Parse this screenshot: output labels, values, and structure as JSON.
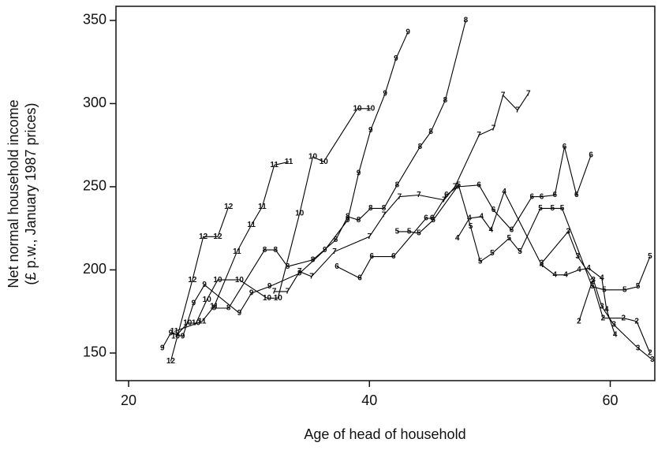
{
  "chart_data": {
    "type": "scatter",
    "x_label": "Age of head of household",
    "y_label": [
      "Net normal household income",
      "(£ p.w., January 1987 prices)"
    ],
    "xlim": [
      18.95,
      63.7
    ],
    "ylim": [
      133.4,
      358.5
    ],
    "xticks": [
      20,
      40,
      60
    ],
    "yticks": [
      150,
      200,
      250,
      300,
      350
    ],
    "color": "#000000",
    "series": [
      {
        "name": "12",
        "x": [
          23.5,
          25.3,
          26.2,
          27.4,
          28.3
        ],
        "values": [
          145,
          194,
          220,
          220,
          238
        ]
      },
      {
        "name": "11",
        "x": [
          23.8,
          26.1,
          27.1,
          29,
          30.2,
          31.1,
          32.1,
          33.3
        ],
        "values": [
          163,
          169,
          178,
          211,
          227,
          238,
          263,
          265
        ]
      },
      {
        "name": "10",
        "x": [
          23.9,
          24.9,
          25.6,
          26.5,
          27.4,
          29.2,
          31.5,
          32.4,
          34.2,
          35.3,
          36.2,
          39,
          40.1
        ],
        "values": [
          160,
          168,
          168,
          182,
          194,
          194,
          183,
          183,
          234,
          268,
          265,
          297,
          297
        ]
      },
      {
        "name": "9",
        "x": [
          22.8,
          23.5,
          24.5,
          25.4,
          26.3,
          29.2,
          30.2,
          31.7,
          34.2,
          36.3,
          38.2,
          39.1,
          40.1,
          41.3,
          42.2,
          43.2
        ],
        "values": [
          153,
          162,
          160,
          180,
          191,
          174,
          186,
          190,
          198,
          212,
          230,
          258,
          284,
          306,
          327,
          343
        ]
      },
      {
        "name": "8",
        "x": [
          27.1,
          28.3,
          31.3,
          32.2,
          33.2,
          35.3,
          37.2,
          38.2,
          39.1,
          40.1,
          41.2,
          42.3,
          44.2,
          45.1,
          46.3,
          48
        ],
        "values": [
          177,
          177,
          212,
          212,
          202,
          206,
          218,
          232,
          230,
          237,
          237,
          251,
          274,
          283,
          302,
          350
        ]
      },
      {
        "name": "7",
        "x": [
          32.1,
          33.2,
          34.2,
          35.2,
          37.1,
          40,
          41.2,
          42.5,
          44.1,
          46.2,
          47.1,
          49.1,
          50.3,
          51.1,
          52.3,
          53.2
        ],
        "values": [
          187,
          187,
          199,
          196,
          211,
          220,
          233,
          244,
          245,
          242,
          250,
          281,
          285,
          305,
          296,
          306
        ]
      },
      {
        "name": "6",
        "x": [
          37.3,
          39.2,
          40.2,
          42,
          44.7,
          45.2,
          46.4,
          47.3,
          49.1,
          50.3,
          51.8,
          53.5,
          54.3,
          55.4,
          56.2,
          57.2,
          58.4
        ],
        "values": [
          202,
          195,
          208,
          208,
          231,
          231,
          245,
          250,
          251,
          236,
          224,
          244,
          244,
          245,
          274,
          245,
          269
        ]
      },
      {
        "name": "5",
        "x": [
          42.3,
          43.3,
          44.1,
          45.3,
          47.4,
          48.4,
          49.2,
          50.2,
          51.6,
          52.5,
          54.2,
          55.2,
          56,
          58.5,
          59.5,
          61.2,
          62.3,
          63.3
        ],
        "values": [
          223,
          223,
          222,
          230,
          251,
          226,
          205,
          210,
          219,
          211,
          237,
          237,
          237,
          190,
          188,
          188,
          190,
          208
        ]
      },
      {
        "name": "4",
        "x": [
          47.3,
          48.3,
          49.3,
          50.1,
          51.2,
          54.3,
          55.4,
          56.3,
          57.4,
          58.2,
          59.3,
          59.7,
          60.4
        ],
        "values": [
          219,
          231,
          232,
          224,
          247,
          203,
          197,
          197,
          200,
          201,
          195,
          176,
          161
        ]
      },
      {
        "name": "3",
        "x": [
          54.3,
          56.5,
          57.3,
          58.6,
          59.3,
          60.3,
          62.3,
          63.5
        ],
        "values": [
          204,
          223,
          208,
          194,
          178,
          167,
          153,
          146
        ]
      },
      {
        "name": "2",
        "x": [
          57.4,
          58.5,
          59.4,
          61.1,
          62.2,
          63.3
        ],
        "values": [
          169,
          193,
          171,
          171,
          169,
          150
        ]
      }
    ]
  }
}
